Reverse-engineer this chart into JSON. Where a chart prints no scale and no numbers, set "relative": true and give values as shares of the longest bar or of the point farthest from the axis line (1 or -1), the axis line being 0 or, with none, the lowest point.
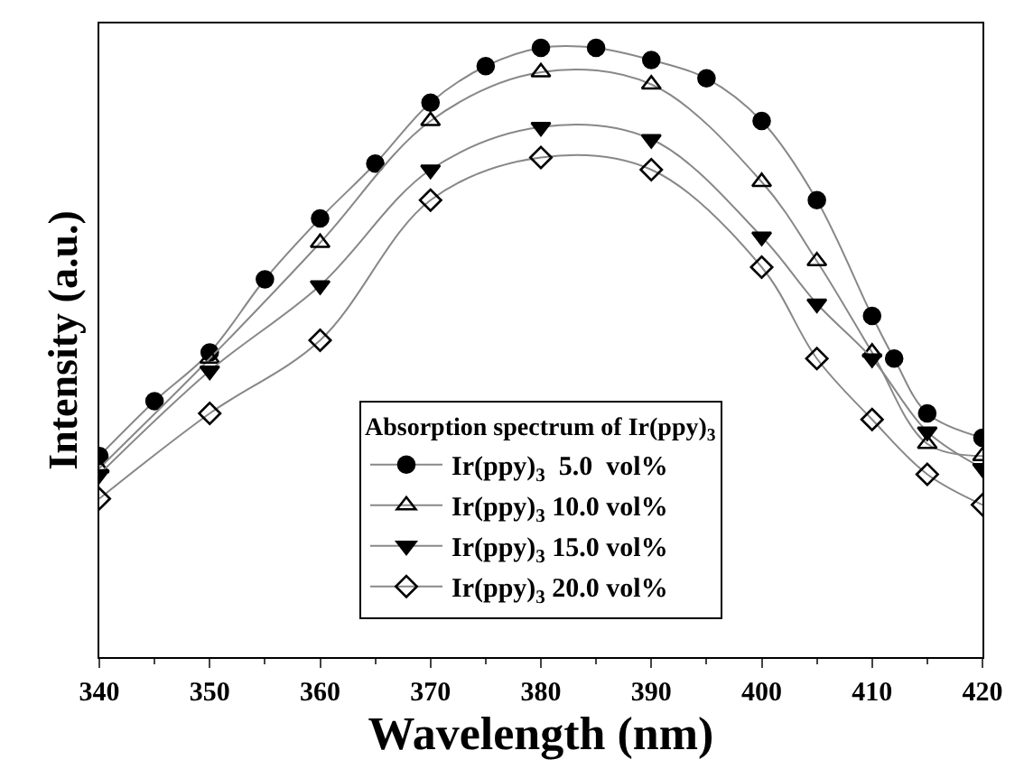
{
  "chart_data": {
    "type": "line",
    "relative": true,
    "xlabel": "Wavelength (nm)",
    "ylabel": "Intensity (a.u.)",
    "legend_title": "Absorption spectrum of Ir(ppy)$_{3}$",
    "legend": "bottom",
    "xlim": [
      340,
      420
    ],
    "xticks": [
      340,
      350,
      360,
      370,
      380,
      390,
      400,
      410,
      420
    ],
    "series": [
      {
        "name": "Ir(ppy)$_{3}$  5.0  vol%",
        "color": "#000000",
        "marker": "circle",
        "x": [
          340,
          345,
          350,
          355,
          360,
          365,
          370,
          375,
          380,
          385,
          390,
          395,
          400,
          405,
          410,
          412,
          415,
          420
        ],
        "values": [
          0.33,
          0.42,
          0.5,
          0.62,
          0.72,
          0.81,
          0.91,
          0.97,
          1.0,
          1.0,
          0.98,
          0.95,
          0.88,
          0.75,
          0.56,
          0.49,
          0.4,
          0.36
        ]
      },
      {
        "name": "Ir(ppy)$_{3}$ 10.0 vol%",
        "color": "#000000",
        "marker": "triangle-open",
        "x": [
          340,
          350,
          360,
          370,
          380,
          390,
          400,
          405,
          410,
          415,
          420
        ],
        "values": [
          0.31,
          0.49,
          0.68,
          0.88,
          0.96,
          0.94,
          0.78,
          0.65,
          0.5,
          0.35,
          0.33
        ]
      },
      {
        "name": "Ir(ppy)$_{3}$ 15.0 vol%",
        "color": "#000000",
        "marker": "triangle-down",
        "x": [
          340,
          350,
          360,
          370,
          380,
          390,
          400,
          405,
          410,
          415,
          420
        ],
        "values": [
          0.3,
          0.47,
          0.61,
          0.8,
          0.87,
          0.85,
          0.69,
          0.58,
          0.49,
          0.37,
          0.31
        ]
      },
      {
        "name": "Ir(ppy)$_{3}$ 20.0 vol%",
        "color": "#000000",
        "marker": "diamond-open",
        "x": [
          340,
          350,
          360,
          370,
          380,
          390,
          400,
          405,
          410,
          415,
          420
        ],
        "values": [
          0.26,
          0.4,
          0.52,
          0.75,
          0.82,
          0.8,
          0.64,
          0.49,
          0.39,
          0.3,
          0.25
        ]
      }
    ]
  }
}
